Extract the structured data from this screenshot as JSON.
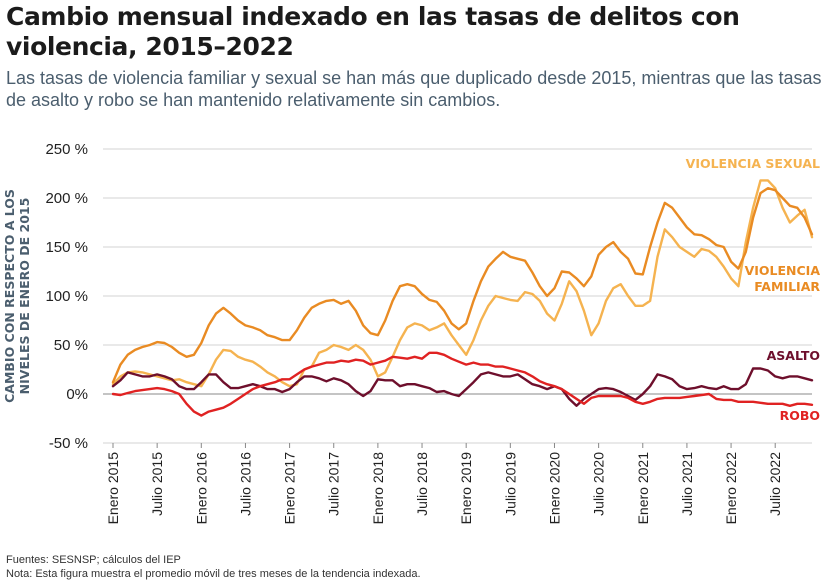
{
  "title": "Cambio mensual indexado en las tasas de delitos con violencia, 2015–2022",
  "subtitle": "Las tasas de violencia familiar y sexual se han más que duplicado desde 2015, mientras que las tasas de asalto y robo se han mantenido relativamente sin cambios.",
  "source": "Fuentes: SESNSP; cálculos del IEP",
  "note": "Nota: Esta figura muestra el promedio móvil de tres meses de la tendencia indexada.",
  "chart_data": {
    "type": "line",
    "ylabel": "CAMBIO CON RESPECTO A LOS NIVELES DE ENERO DE 2015",
    "ylim": [
      -50,
      250
    ],
    "yticks": [
      -50,
      0,
      50,
      100,
      150,
      200,
      250
    ],
    "ytick_labels": [
      "-50 %",
      "0%",
      "50 %",
      "100 %",
      "150 %",
      "200 %",
      "250 %"
    ],
    "xtick_labels": [
      "Enero 2015",
      "Julio 2015",
      "Enero 2016",
      "Julio 2016",
      "Enero 2017",
      "Julio 2017",
      "Enero 2018",
      "Julio 2018",
      "Enero 2019",
      "Julio 2019",
      "Enero 2020",
      "Julio 2020",
      "Enero 2021",
      "Julio 2021",
      "Enero 2022",
      "Julio 2022"
    ],
    "x_months": [
      "2015-01",
      "2015-02",
      "2015-03",
      "2015-04",
      "2015-05",
      "2015-06",
      "2015-07",
      "2015-08",
      "2015-09",
      "2015-10",
      "2015-11",
      "2015-12",
      "2016-01",
      "2016-02",
      "2016-03",
      "2016-04",
      "2016-05",
      "2016-06",
      "2016-07",
      "2016-08",
      "2016-09",
      "2016-10",
      "2016-11",
      "2016-12",
      "2017-01",
      "2017-02",
      "2017-03",
      "2017-04",
      "2017-05",
      "2017-06",
      "2017-07",
      "2017-08",
      "2017-09",
      "2017-10",
      "2017-11",
      "2017-12",
      "2018-01",
      "2018-02",
      "2018-03",
      "2018-04",
      "2018-05",
      "2018-06",
      "2018-07",
      "2018-08",
      "2018-09",
      "2018-10",
      "2018-11",
      "2018-12",
      "2019-01",
      "2019-02",
      "2019-03",
      "2019-04",
      "2019-05",
      "2019-06",
      "2019-07",
      "2019-08",
      "2019-09",
      "2019-10",
      "2019-11",
      "2019-12",
      "2020-01",
      "2020-02",
      "2020-03",
      "2020-04",
      "2020-05",
      "2020-06",
      "2020-07",
      "2020-08",
      "2020-09",
      "2020-10",
      "2020-11",
      "2020-12",
      "2021-01",
      "2021-02",
      "2021-03",
      "2021-04",
      "2021-05",
      "2021-06",
      "2021-07",
      "2021-08",
      "2021-09",
      "2021-10",
      "2021-11",
      "2021-12",
      "2022-01",
      "2022-02",
      "2022-03",
      "2022-04",
      "2022-05",
      "2022-06",
      "2022-07",
      "2022-08",
      "2022-09",
      "2022-10",
      "2022-11",
      "2022-12"
    ],
    "grid": true,
    "series": [
      {
        "name": "VIOLENCIA SEXUAL",
        "label_lines": [
          "VIOLENCIA SEXUAL"
        ],
        "color": "#f5b350",
        "values": [
          10,
          18,
          22,
          23,
          22,
          20,
          18,
          16,
          14,
          15,
          12,
          10,
          8,
          20,
          35,
          45,
          44,
          38,
          35,
          33,
          28,
          22,
          18,
          12,
          8,
          10,
          25,
          28,
          42,
          45,
          50,
          48,
          45,
          50,
          45,
          35,
          18,
          22,
          38,
          55,
          68,
          72,
          70,
          65,
          68,
          72,
          60,
          50,
          40,
          55,
          75,
          90,
          100,
          98,
          96,
          95,
          104,
          102,
          95,
          82,
          75,
          92,
          115,
          105,
          85,
          60,
          72,
          95,
          108,
          112,
          100,
          90,
          90,
          95,
          140,
          168,
          160,
          150,
          145,
          140,
          148,
          146,
          140,
          130,
          118,
          110,
          155,
          190,
          218,
          218,
          210,
          190,
          175,
          182,
          188,
          160
        ]
      },
      {
        "name": "VIOLENCIA FAMILIAR",
        "label_lines": [
          "VIOLENCIA",
          "FAMILIAR"
        ],
        "color": "#e98b23",
        "values": [
          12,
          30,
          40,
          45,
          48,
          50,
          53,
          52,
          48,
          42,
          38,
          40,
          52,
          70,
          82,
          88,
          82,
          75,
          70,
          68,
          65,
          60,
          58,
          55,
          55,
          65,
          78,
          88,
          92,
          95,
          96,
          92,
          95,
          85,
          70,
          62,
          60,
          75,
          95,
          110,
          112,
          110,
          102,
          96,
          94,
          85,
          72,
          66,
          72,
          95,
          115,
          130,
          138,
          145,
          140,
          138,
          136,
          124,
          110,
          100,
          108,
          125,
          124,
          118,
          110,
          120,
          142,
          150,
          155,
          145,
          138,
          123,
          122,
          150,
          175,
          195,
          190,
          180,
          170,
          163,
          162,
          158,
          152,
          150,
          135,
          128,
          145,
          180,
          205,
          210,
          208,
          200,
          192,
          190,
          180,
          163
        ]
      },
      {
        "name": "ASALTO",
        "label_lines": [
          "ASALTO"
        ],
        "color": "#6e0f2c",
        "values": [
          8,
          14,
          22,
          20,
          18,
          18,
          20,
          18,
          15,
          8,
          5,
          5,
          12,
          20,
          20,
          12,
          6,
          6,
          8,
          10,
          8,
          5,
          5,
          2,
          5,
          12,
          18,
          18,
          16,
          13,
          16,
          14,
          10,
          3,
          -2,
          3,
          15,
          14,
          14,
          8,
          10,
          10,
          8,
          6,
          2,
          3,
          0,
          -2,
          5,
          12,
          20,
          22,
          20,
          18,
          18,
          20,
          15,
          10,
          8,
          5,
          8,
          5,
          -5,
          -12,
          -5,
          0,
          5,
          6,
          5,
          2,
          -2,
          -6,
          0,
          8,
          20,
          18,
          15,
          8,
          5,
          6,
          8,
          6,
          5,
          8,
          5,
          5,
          10,
          26,
          26,
          24,
          18,
          16,
          18,
          18,
          16,
          14
        ]
      },
      {
        "name": "ROBO",
        "label_lines": [
          "ROBO"
        ],
        "color": "#e02222",
        "values": [
          0,
          -1,
          1,
          3,
          4,
          5,
          6,
          5,
          3,
          0,
          -10,
          -18,
          -22,
          -18,
          -16,
          -14,
          -10,
          -5,
          0,
          5,
          8,
          10,
          12,
          15,
          15,
          20,
          25,
          28,
          30,
          32,
          32,
          34,
          33,
          35,
          34,
          30,
          32,
          34,
          38,
          37,
          36,
          38,
          36,
          42,
          42,
          40,
          36,
          33,
          30,
          32,
          30,
          30,
          28,
          28,
          26,
          24,
          22,
          18,
          13,
          10,
          8,
          5,
          0,
          -5,
          -10,
          -4,
          -2,
          -2,
          -2,
          -2,
          -4,
          -8,
          -10,
          -8,
          -5,
          -4,
          -4,
          -4,
          -3,
          -2,
          -1,
          0,
          -5,
          -6,
          -6,
          -8,
          -8,
          -8,
          -9,
          -10,
          -10,
          -10,
          -12,
          -10,
          -10,
          -11
        ]
      }
    ]
  }
}
